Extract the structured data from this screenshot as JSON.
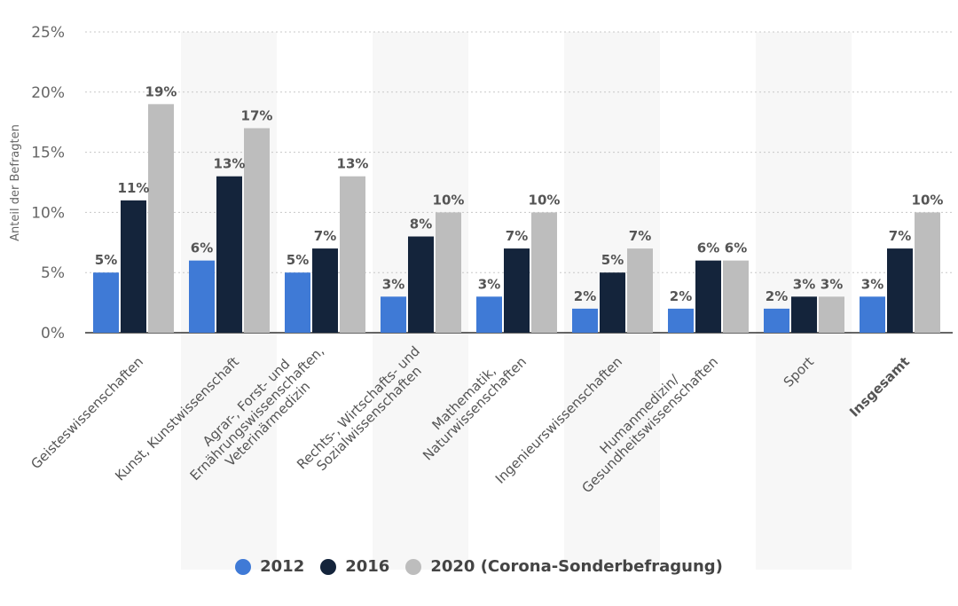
{
  "chart_data": {
    "type": "bar",
    "title": "",
    "xlabel": "",
    "ylabel": "Anteil der Befragten",
    "ylim": [
      0,
      25
    ],
    "yticks": [
      "0%",
      "5%",
      "10%",
      "15%",
      "20%",
      "25%"
    ],
    "categories": [
      [
        "Geisteswissenschaften"
      ],
      [
        "Kunst, Kunstwissenschaft"
      ],
      [
        "Agrar-, Forst- und",
        "Ernährungswissenschaften,",
        "Veterinärmedizin"
      ],
      [
        "Rechts-, Wirtschafts- und",
        "Sozialwissenschaften"
      ],
      [
        "Mathematik,",
        "Naturwissenschaften"
      ],
      [
        "Ingenieurswissenschaften"
      ],
      [
        "Humanmedizin/",
        "Gesundheitswissenschaften"
      ],
      [
        "Sport"
      ],
      [
        "Insgesamt"
      ]
    ],
    "bold_category_index": 8,
    "series": [
      {
        "name": "2012",
        "color": "#3f7ad6",
        "values": [
          5,
          6,
          5,
          3,
          3,
          2,
          2,
          2,
          3
        ],
        "labels": [
          "5%",
          "6%",
          "5%",
          "3%",
          "3%",
          "2%",
          "2%",
          "2%",
          "3%"
        ]
      },
      {
        "name": "2016",
        "color": "#14243b",
        "values": [
          11,
          13,
          7,
          8,
          7,
          5,
          6,
          3,
          7
        ],
        "labels": [
          "11%",
          "13%",
          "7%",
          "8%",
          "7%",
          "5%",
          "6%",
          "3%",
          "7%"
        ]
      },
      {
        "name": "2020 (Corona-Sonderbefragung)",
        "color": "#bdbdbd",
        "values": [
          19,
          17,
          13,
          10,
          10,
          7,
          6,
          3,
          10
        ],
        "labels": [
          "19%",
          "17%",
          "13%",
          "10%",
          "10%",
          "7%",
          "6%",
          "3%",
          "10%"
        ]
      }
    ],
    "grid": true,
    "legend": "bottom-center"
  }
}
